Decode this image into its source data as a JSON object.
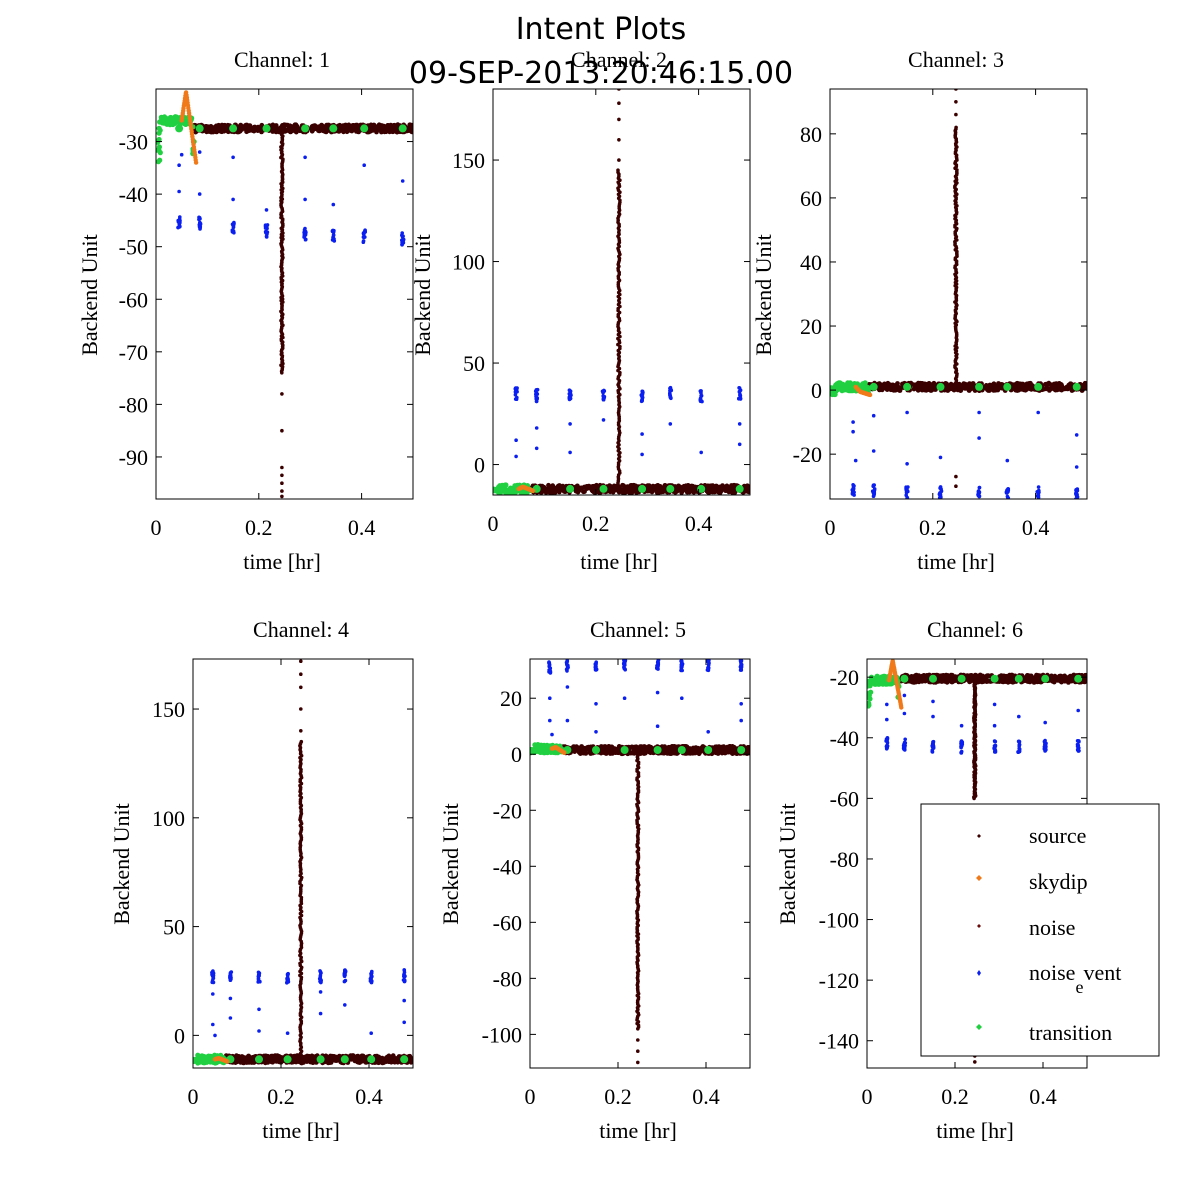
{
  "figure": {
    "title_line1": "Intent Plots",
    "title_line2": "09-SEP-2013:20:46:15.00"
  },
  "legend": {
    "source": "source",
    "skydip": "skydip",
    "noise": "noise",
    "noise_event_base": "noise",
    "noise_event_sub": "e",
    "noise_event_rest": "vent",
    "transition": "transition"
  },
  "colors": {
    "source": "#3a0000",
    "skydip": "#f07a1a",
    "noise": "#6b0a0a",
    "noise_event": "#0a1ff0",
    "transition": "#20d040"
  },
  "chart_data": [
    {
      "type": "scatter",
      "title": "Channel: 1",
      "xlabel": "time [hr]",
      "ylabel": "Backend Unit",
      "xlim": [
        0,
        0.5
      ],
      "ylim": [
        -98,
        -20
      ],
      "xticks": [
        0,
        0.2,
        0.4
      ],
      "xticklabels": [
        "0",
        "0.2",
        "0.4"
      ],
      "yticks": [
        -30,
        -40,
        -50,
        -60,
        -70,
        -80,
        -90
      ],
      "yticklabels": [
        "-30",
        "-40",
        "-50",
        "-60",
        "-70",
        "-80",
        "-90"
      ],
      "baseline": -27.5,
      "trans_level": -26,
      "skydip_peak": -20.5,
      "trans_low": -34,
      "noise_clusters": [
        [
          0.045,
          -45.5
        ],
        [
          0.085,
          -45.5
        ],
        [
          0.15,
          -46.5
        ],
        [
          0.215,
          -47
        ],
        [
          0.29,
          -47.5
        ],
        [
          0.345,
          -48
        ],
        [
          0.405,
          -48
        ],
        [
          0.48,
          -48.5
        ]
      ],
      "noise_scatter": [
        [
          0.045,
          -39.5
        ],
        [
          0.045,
          -34.5
        ],
        [
          0.05,
          -32.5
        ],
        [
          0.085,
          -40
        ],
        [
          0.085,
          -32
        ],
        [
          0.15,
          -41
        ],
        [
          0.15,
          -33
        ],
        [
          0.215,
          -43
        ],
        [
          0.29,
          -41
        ],
        [
          0.29,
          -33
        ],
        [
          0.345,
          -42
        ],
        [
          0.405,
          -34.5
        ],
        [
          0.48,
          -37.5
        ]
      ],
      "source_spike": {
        "x": 0.245,
        "from": -27.5,
        "to": -74
      },
      "source_spike_tail": [
        -78,
        -85,
        -92,
        -93.5,
        -95,
        -96.5,
        -97.5
      ],
      "legend": false
    },
    {
      "type": "scatter",
      "title": "Channel: 2",
      "xlabel": "time [hr]",
      "ylabel": "Backend Unit",
      "xlim": [
        0,
        0.5
      ],
      "ylim": [
        -15,
        185
      ],
      "xticks": [
        0,
        0.2,
        0.4
      ],
      "xticklabels": [
        "0",
        "0.2",
        "0.4"
      ],
      "yticks": [
        150,
        100,
        50,
        0
      ],
      "yticklabels": [
        "150",
        "100",
        "50",
        "0"
      ],
      "baseline": -12,
      "trans_level": -12,
      "skydip_peak": -11,
      "trans_low": -13,
      "noise_clusters": [
        [
          0.045,
          35
        ],
        [
          0.085,
          34
        ],
        [
          0.15,
          35
        ],
        [
          0.215,
          34
        ],
        [
          0.29,
          34
        ],
        [
          0.345,
          35
        ],
        [
          0.405,
          34
        ],
        [
          0.48,
          35
        ]
      ],
      "noise_scatter": [
        [
          0.045,
          12
        ],
        [
          0.045,
          4
        ],
        [
          0.085,
          18
        ],
        [
          0.085,
          8
        ],
        [
          0.15,
          20
        ],
        [
          0.15,
          6
        ],
        [
          0.215,
          22
        ],
        [
          0.29,
          15
        ],
        [
          0.29,
          5
        ],
        [
          0.345,
          20
        ],
        [
          0.405,
          6
        ],
        [
          0.48,
          10
        ],
        [
          0.48,
          20
        ]
      ],
      "source_spike": {
        "x": 0.245,
        "from": -12,
        "to": 145
      },
      "source_spike_tail": [
        150,
        160,
        170,
        178,
        185
      ],
      "legend": false
    },
    {
      "type": "scatter",
      "title": "Channel: 3",
      "xlabel": "time [hr]",
      "ylabel": "Backend Unit",
      "xlim": [
        0,
        0.5
      ],
      "ylim": [
        -34,
        94
      ],
      "xticks": [
        0,
        0.2,
        0.4
      ],
      "xticklabels": [
        "0",
        "0.2",
        "0.4"
      ],
      "yticks": [
        80,
        60,
        40,
        20,
        0,
        -20
      ],
      "yticklabels": [
        "80",
        "60",
        "40",
        "20",
        "0",
        "-20"
      ],
      "baseline": 1,
      "trans_level": 1,
      "skydip_peak": -0.5,
      "trans_low": -1.5,
      "noise_clusters": [
        [
          0.045,
          -31
        ],
        [
          0.085,
          -31.5
        ],
        [
          0.15,
          -32
        ],
        [
          0.215,
          -32
        ],
        [
          0.29,
          -32
        ],
        [
          0.345,
          -32
        ],
        [
          0.405,
          -32
        ],
        [
          0.48,
          -32.5
        ]
      ],
      "noise_scatter": [
        [
          0.045,
          -10
        ],
        [
          0.045,
          -13
        ],
        [
          0.05,
          -22
        ],
        [
          0.085,
          -19
        ],
        [
          0.085,
          -8
        ],
        [
          0.15,
          -23
        ],
        [
          0.15,
          -7
        ],
        [
          0.215,
          -21
        ],
        [
          0.29,
          -7
        ],
        [
          0.29,
          -15
        ],
        [
          0.345,
          -22
        ],
        [
          0.405,
          -7
        ],
        [
          0.48,
          -14
        ],
        [
          0.48,
          -24
        ]
      ],
      "source_spike": {
        "x": 0.245,
        "from": 1,
        "to": 82
      },
      "source_spike_tail": [
        86,
        90,
        94,
        -27,
        -30
      ],
      "legend": false
    },
    {
      "type": "scatter",
      "title": "Channel: 4",
      "xlabel": "time [hr]",
      "ylabel": "Backend Unit",
      "xlim": [
        0,
        0.5
      ],
      "ylim": [
        -15,
        173
      ],
      "xticks": [
        0,
        0.2,
        0.4
      ],
      "xticklabels": [
        "0",
        "0.2",
        "0.4"
      ],
      "yticks": [
        150,
        100,
        50,
        0
      ],
      "yticklabels": [
        "150",
        "100",
        "50",
        "0"
      ],
      "baseline": -11,
      "trans_level": -11,
      "skydip_peak": -10.5,
      "trans_low": -12,
      "noise_clusters": [
        [
          0.045,
          27
        ],
        [
          0.085,
          27.5
        ],
        [
          0.15,
          27
        ],
        [
          0.215,
          26.5
        ],
        [
          0.29,
          27
        ],
        [
          0.345,
          27.5
        ],
        [
          0.405,
          27
        ],
        [
          0.48,
          27.5
        ]
      ],
      "noise_scatter": [
        [
          0.045,
          5
        ],
        [
          0.045,
          19
        ],
        [
          0.05,
          0
        ],
        [
          0.085,
          8
        ],
        [
          0.085,
          17
        ],
        [
          0.15,
          2
        ],
        [
          0.15,
          12
        ],
        [
          0.215,
          1
        ],
        [
          0.29,
          10
        ],
        [
          0.29,
          20
        ],
        [
          0.345,
          14
        ],
        [
          0.405,
          1
        ],
        [
          0.48,
          6
        ],
        [
          0.48,
          16
        ]
      ],
      "source_spike": {
        "x": 0.245,
        "from": -11,
        "to": 135
      },
      "source_spike_tail": [
        140,
        150,
        160,
        166,
        172
      ],
      "legend": false
    },
    {
      "type": "scatter",
      "title": "Channel: 5",
      "xlabel": "time [hr]",
      "ylabel": "Backend Unit",
      "xlim": [
        0,
        0.5
      ],
      "ylim": [
        -112,
        34
      ],
      "xticks": [
        0,
        0.2,
        0.4
      ],
      "xticklabels": [
        "0",
        "0.2",
        "0.4"
      ],
      "yticks": [
        20,
        0,
        -20,
        -40,
        -60,
        -80,
        -100
      ],
      "yticklabels": [
        "20",
        "0",
        "-20",
        "-40",
        "-60",
        "-80",
        "-100"
      ],
      "baseline": 1.5,
      "trans_level": 2,
      "skydip_peak": 2.5,
      "trans_low": 0.5,
      "noise_clusters": [
        [
          0.045,
          31
        ],
        [
          0.085,
          31.5
        ],
        [
          0.15,
          32
        ],
        [
          0.215,
          32
        ],
        [
          0.29,
          32
        ],
        [
          0.345,
          32
        ],
        [
          0.405,
          32
        ],
        [
          0.48,
          32
        ]
      ],
      "noise_scatter": [
        [
          0.045,
          20
        ],
        [
          0.045,
          12
        ],
        [
          0.05,
          7
        ],
        [
          0.085,
          24
        ],
        [
          0.085,
          12
        ],
        [
          0.15,
          18
        ],
        [
          0.15,
          8
        ],
        [
          0.215,
          20
        ],
        [
          0.29,
          22
        ],
        [
          0.29,
          10
        ],
        [
          0.345,
          20
        ],
        [
          0.405,
          8
        ],
        [
          0.48,
          18
        ],
        [
          0.48,
          12
        ]
      ],
      "source_spike": {
        "x": 0.245,
        "from": 1.5,
        "to": -98
      },
      "source_spike_tail": [
        -102,
        -106,
        -110
      ],
      "legend": false
    },
    {
      "type": "scatter",
      "title": "Channel: 6",
      "xlabel": "time [hr]",
      "ylabel": "Backend Unit",
      "xlim": [
        0,
        0.5
      ],
      "ylim": [
        -149,
        -14
      ],
      "xticks": [
        0,
        0.2,
        0.4
      ],
      "xticklabels": [
        "0",
        "0.2",
        "0.4"
      ],
      "yticks": [
        -20,
        -40,
        -60,
        -80,
        -100,
        -120,
        -140
      ],
      "yticklabels": [
        "-20",
        "-40",
        "-60",
        "-80",
        "-100",
        "-120",
        "-140"
      ],
      "baseline": -20.5,
      "trans_level": -21,
      "skydip_peak": -14.5,
      "trans_low": -30,
      "noise_clusters": [
        [
          0.045,
          -42
        ],
        [
          0.085,
          -42.5
        ],
        [
          0.15,
          -43
        ],
        [
          0.215,
          -43
        ],
        [
          0.29,
          -43
        ],
        [
          0.345,
          -43
        ],
        [
          0.405,
          -42.5
        ],
        [
          0.48,
          -43
        ]
      ],
      "noise_scatter": [
        [
          0.045,
          -29
        ],
        [
          0.045,
          -34
        ],
        [
          0.085,
          -26
        ],
        [
          0.085,
          -32
        ],
        [
          0.15,
          -33
        ],
        [
          0.15,
          -28
        ],
        [
          0.215,
          -36
        ],
        [
          0.29,
          -29
        ],
        [
          0.29,
          -36
        ],
        [
          0.345,
          -33
        ],
        [
          0.405,
          -35
        ],
        [
          0.48,
          -31
        ]
      ],
      "source_spike": {
        "x": 0.245,
        "from": -20.5,
        "to": -60
      },
      "source_spike_tail": [
        -145,
        -147
      ],
      "legend": true
    }
  ]
}
